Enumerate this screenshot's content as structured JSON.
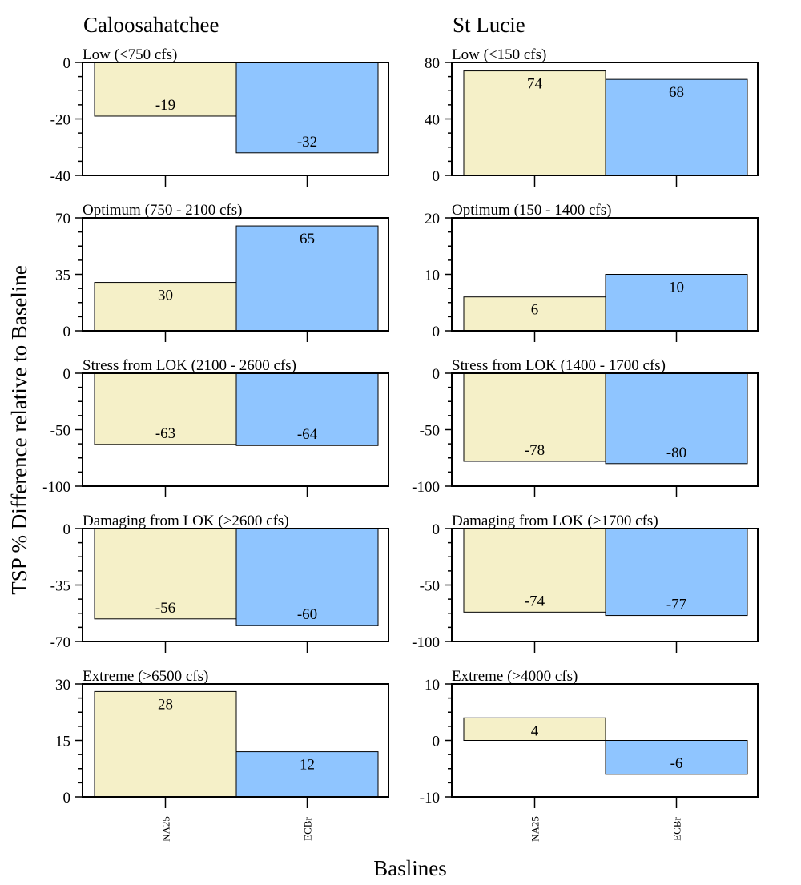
{
  "figure": {
    "ylabel": "TSP % Difference relative to Baseline",
    "xlabel": "Baslines",
    "categories": [
      "NA25",
      "ECBr"
    ],
    "colors": {
      "NA25": "#f5f0c8",
      "ECBr": "#8fc5ff",
      "frame": "#000000"
    }
  },
  "chart_data": [
    {
      "type": "bar",
      "column": "Caloosahatchee",
      "title": "Low (<750 cfs)",
      "categories": [
        "NA25",
        "ECBr"
      ],
      "values": [
        -19,
        -32
      ],
      "ylim": [
        -40,
        0
      ],
      "yticks": [
        -40,
        -20,
        0
      ],
      "labels": [
        "-19",
        "-32"
      ]
    },
    {
      "type": "bar",
      "column": "Caloosahatchee",
      "title": "Optimum (750 - 2100 cfs)",
      "categories": [
        "NA25",
        "ECBr"
      ],
      "values": [
        30,
        65
      ],
      "ylim": [
        0,
        70
      ],
      "yticks": [
        0,
        35,
        70
      ],
      "labels": [
        "30",
        "65"
      ]
    },
    {
      "type": "bar",
      "column": "Caloosahatchee",
      "title": "Stress from LOK (2100 - 2600 cfs)",
      "categories": [
        "NA25",
        "ECBr"
      ],
      "values": [
        -63,
        -64
      ],
      "ylim": [
        -100,
        0
      ],
      "yticks": [
        -100,
        -50,
        0
      ],
      "labels": [
        "-63",
        "-64"
      ]
    },
    {
      "type": "bar",
      "column": "Caloosahatchee",
      "title": "Damaging from LOK (>2600 cfs)",
      "categories": [
        "NA25",
        "ECBr"
      ],
      "values": [
        -56,
        -60
      ],
      "ylim": [
        -70,
        0
      ],
      "yticks": [
        -70,
        -35,
        0
      ],
      "labels": [
        "-56",
        "-60"
      ]
    },
    {
      "type": "bar",
      "column": "Caloosahatchee",
      "title": "Extreme (>6500 cfs)",
      "categories": [
        "NA25",
        "ECBr"
      ],
      "values": [
        28,
        12
      ],
      "ylim": [
        0,
        30
      ],
      "yticks": [
        0,
        15,
        30
      ],
      "labels": [
        "28",
        "12"
      ]
    },
    {
      "type": "bar",
      "column": "St Lucie",
      "title": "Low (<150 cfs)",
      "categories": [
        "NA25",
        "ECBr"
      ],
      "values": [
        74,
        68
      ],
      "ylim": [
        0,
        80
      ],
      "yticks": [
        0,
        40,
        80
      ],
      "labels": [
        "74",
        "68"
      ]
    },
    {
      "type": "bar",
      "column": "St Lucie",
      "title": "Optimum (150 - 1400 cfs)",
      "categories": [
        "NA25",
        "ECBr"
      ],
      "values": [
        6,
        10
      ],
      "ylim": [
        0,
        20
      ],
      "yticks": [
        0,
        10,
        20
      ],
      "labels": [
        "6",
        "10"
      ]
    },
    {
      "type": "bar",
      "column": "St Lucie",
      "title": "Stress from LOK (1400 - 1700 cfs)",
      "categories": [
        "NA25",
        "ECBr"
      ],
      "values": [
        -78,
        -80
      ],
      "ylim": [
        -100,
        0
      ],
      "yticks": [
        -100,
        -50,
        0
      ],
      "labels": [
        "-78",
        "-80"
      ]
    },
    {
      "type": "bar",
      "column": "St Lucie",
      "title": "Damaging from LOK (>1700 cfs)",
      "categories": [
        "NA25",
        "ECBr"
      ],
      "values": [
        -74,
        -77
      ],
      "ylim": [
        -100,
        0
      ],
      "yticks": [
        -100,
        -50,
        0
      ],
      "labels": [
        "-74",
        "-77"
      ]
    },
    {
      "type": "bar",
      "column": "St Lucie",
      "title": "Extreme (>4000 cfs)",
      "categories": [
        "NA25",
        "ECBr"
      ],
      "values": [
        4,
        -6
      ],
      "ylim": [
        -10,
        10
      ],
      "yticks": [
        -10,
        0,
        10
      ],
      "labels": [
        "4",
        "-6"
      ]
    }
  ]
}
